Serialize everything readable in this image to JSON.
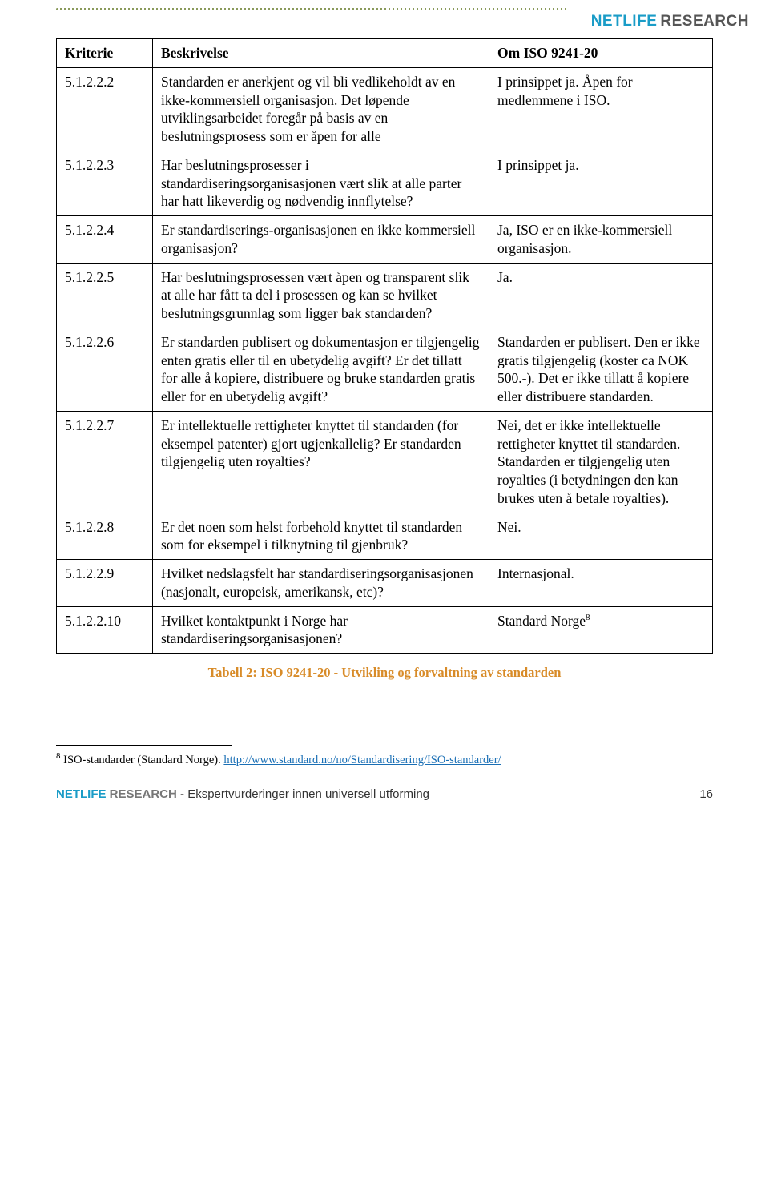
{
  "logo": {
    "part1": "NET",
    "part2": "LIFE",
    "part3": "RESEARCH"
  },
  "table": {
    "headers": {
      "k": "Kriterie",
      "b": "Beskrivelse",
      "o": "Om ISO 9241-20"
    },
    "rows": [
      {
        "k": "5.1.2.2.2",
        "b": "Standarden er anerkjent og vil bli vedlikeholdt av en ikke-kommersiell organisasjon. Det løpende utviklingsarbeidet foregår på basis av en beslutningsprosess som er åpen for alle",
        "o": "I prinsippet ja. Åpen for medlemmene i ISO."
      },
      {
        "k": "5.1.2.2.3",
        "b": "Har beslutningsprosesser i standardiseringsorganisasjonen vært slik at alle parter har hatt likeverdig og nødvendig innflytelse?",
        "o": "I prinsippet ja."
      },
      {
        "k": "5.1.2.2.4",
        "b": "Er standardiserings-organisasjonen en ikke kommersiell organisasjon?",
        "o": "Ja, ISO er en ikke-kommersiell organisasjon."
      },
      {
        "k": "5.1.2.2.5",
        "b": "Har beslutningsprosessen vært åpen og transparent slik at alle har fått ta del i prosessen og kan se hvilket beslutningsgrunnlag som ligger bak standarden?",
        "o": "Ja."
      },
      {
        "k": "5.1.2.2.6",
        "b": "Er standarden publisert og dokumentasjon er tilgjengelig enten gratis eller til en ubetydelig avgift? Er det tillatt for alle å kopiere, distribuere og bruke standarden gratis eller for en ubetydelig avgift?",
        "o": "Standarden er publisert. Den er ikke gratis tilgjengelig (koster ca NOK 500.-). Det er ikke tillatt å kopiere eller distribuere standarden."
      },
      {
        "k": "5.1.2.2.7",
        "b": "Er intellektuelle rettigheter knyttet til standarden (for eksempel patenter) gjort ugjenkallelig? Er standarden tilgjengelig uten royalties?",
        "o": "Nei, det er ikke intellektuelle rettigheter knyttet til standarden. Standarden er tilgjengelig uten royalties (i betydningen den kan brukes uten å betale royalties)."
      },
      {
        "k": "5.1.2.2.8",
        "b": "Er det noen som helst forbehold knyttet til standarden som for eksempel i tilknytning til gjenbruk?",
        "o": "Nei."
      },
      {
        "k": "5.1.2.2.9",
        "b": "Hvilket nedslagsfelt har standardiseringsorganisasjonen (nasjonalt, europeisk, amerikansk, etc)?",
        "o": "Internasjonal."
      },
      {
        "k": "5.1.2.2.10",
        "b": "Hvilket kontaktpunkt i Norge har standardiseringsorganisasjonen?",
        "o_html": "Standard Norge<sup>8</sup>",
        "o": "Standard Norge"
      }
    ]
  },
  "caption": "Tabell 2: ISO 9241-20 - Utvikling og forvaltning av standarden",
  "footnote": {
    "num": "8",
    "text_before": " ISO-standarder  (Standard Norge). ",
    "link_text": "http://www.standard.no/no/Standardisering/ISO-standarder/"
  },
  "footer": {
    "brand1": "NET",
    "brand2": "LIFE",
    "brand3": " RESEARCH",
    "subtitle": " - Ekspertvurderinger innen universell utforming",
    "page": "16"
  }
}
